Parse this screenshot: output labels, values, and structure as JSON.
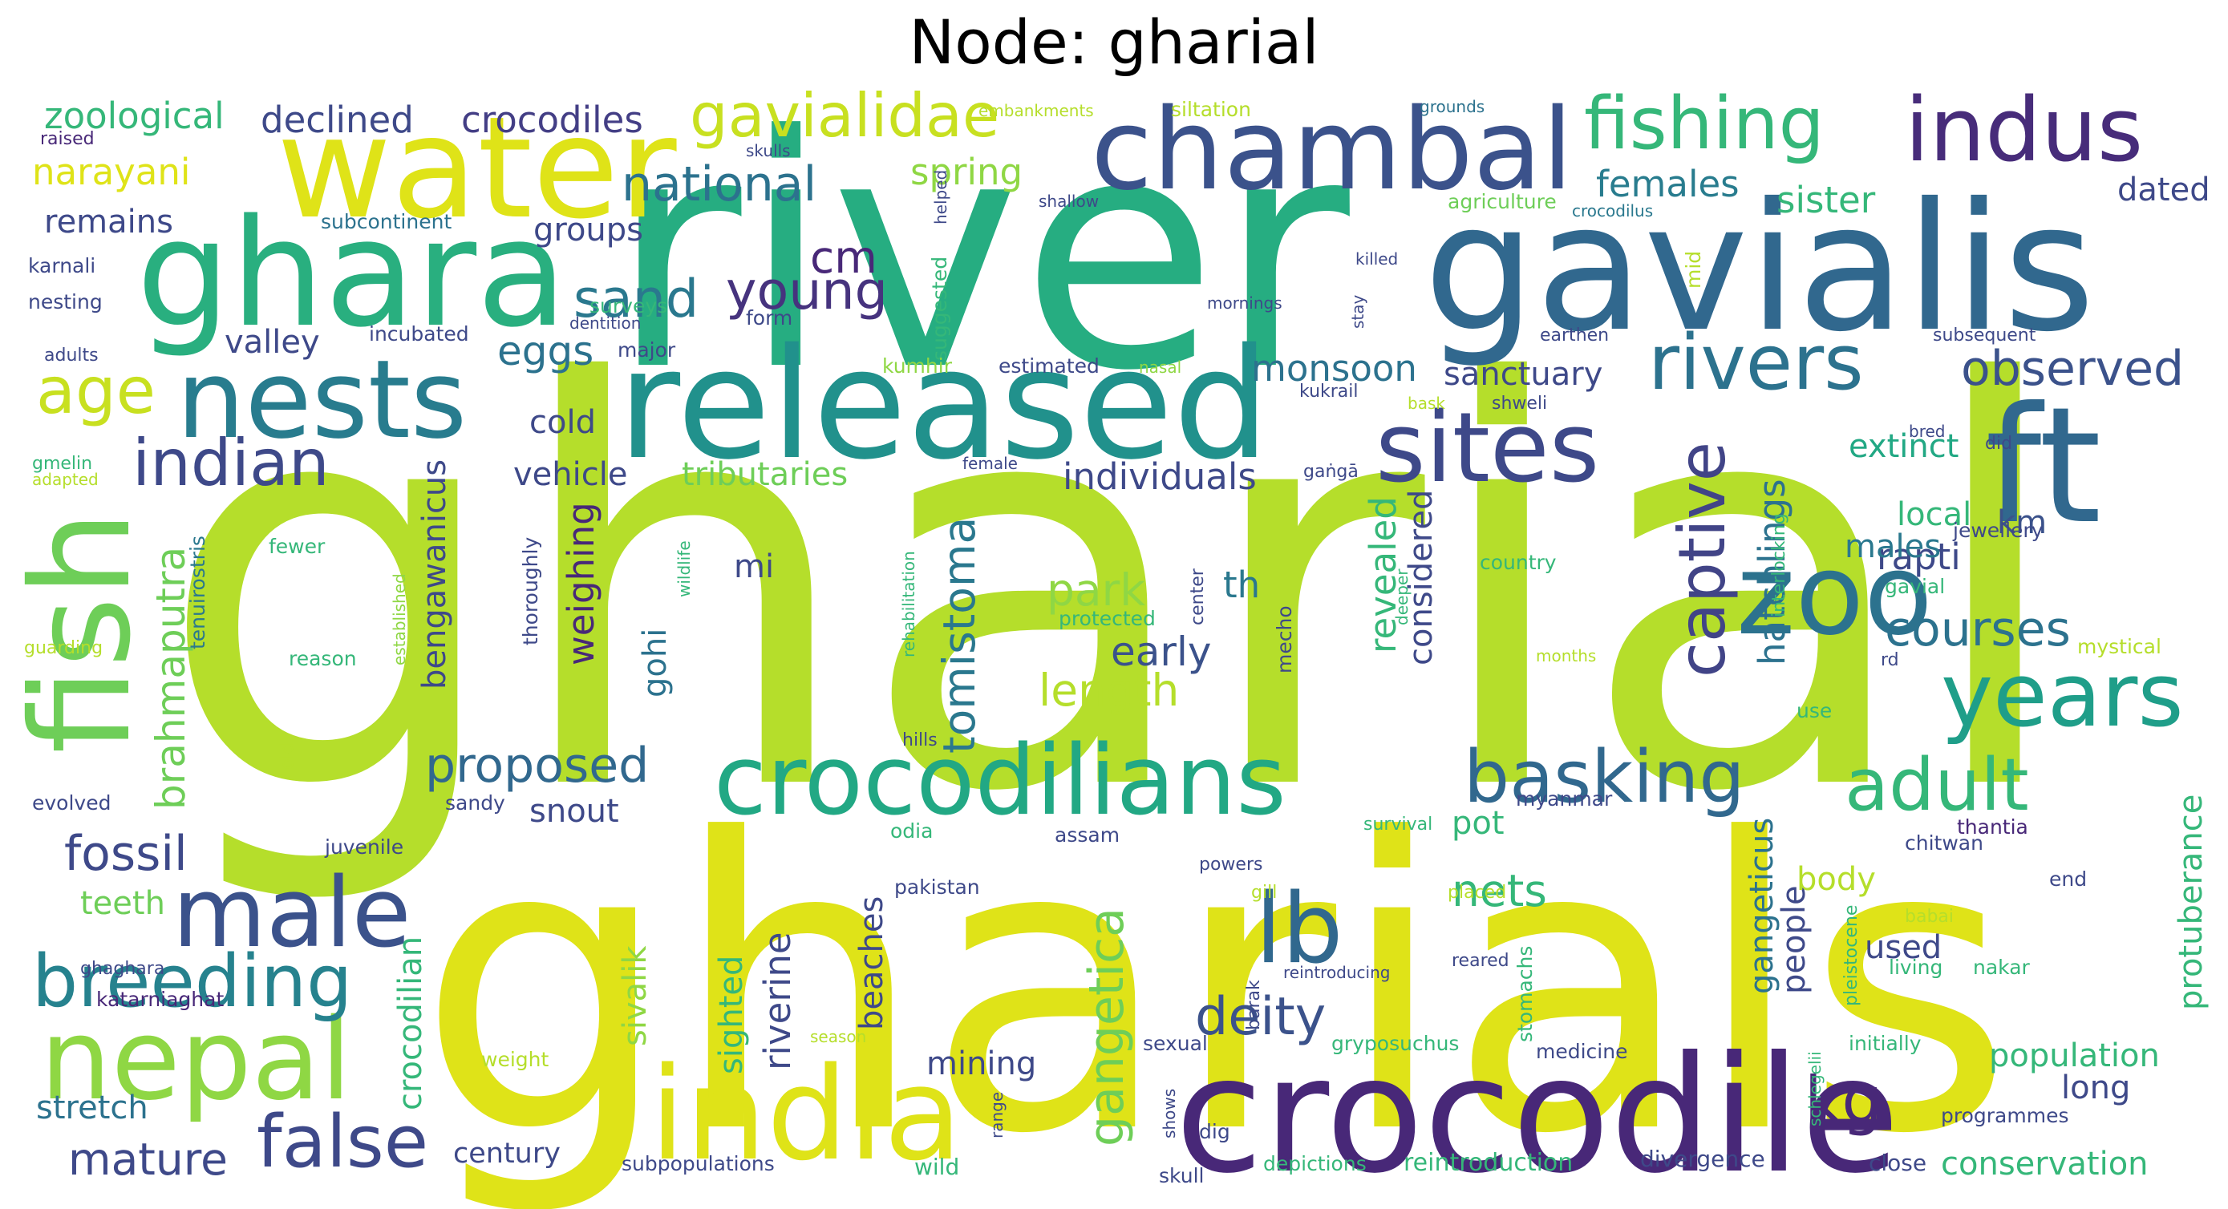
{
  "title": "Node: gharial",
  "palette": [
    "#440154",
    "#482878",
    "#3e4989",
    "#31688e",
    "#26828e",
    "#1f9e89",
    "#35b779",
    "#6ece58",
    "#b5de2b",
    "#fde725"
  ],
  "words": [
    {
      "text": "gharial",
      "color": "#b5de2b"
    },
    {
      "text": "river",
      "color": "#26ad81"
    },
    {
      "text": "gharials",
      "color": "#dfe318"
    },
    {
      "text": "gavialis",
      "color": "#31688e"
    },
    {
      "text": "released",
      "color": "#21918c"
    },
    {
      "text": "crocodile",
      "color": "#482878"
    },
    {
      "text": "ghara",
      "color": "#29af7f"
    },
    {
      "text": "water",
      "color": "#dfe318"
    },
    {
      "text": "chambal",
      "color": "#3b528b"
    },
    {
      "text": "fish",
      "color": "#6ece58"
    },
    {
      "text": "ft",
      "color": "#31688e"
    },
    {
      "text": "nests",
      "color": "#287c8e"
    },
    {
      "text": "zoo",
      "color": "#2c728e"
    },
    {
      "text": "crocodilians",
      "color": "#22a884"
    },
    {
      "text": "india",
      "color": "#dfe318"
    },
    {
      "text": "nepal",
      "color": "#8fd744"
    },
    {
      "text": "sites",
      "color": "#3e4989"
    },
    {
      "text": "years",
      "color": "#1f9e89"
    },
    {
      "text": "male",
      "color": "#3b528b"
    },
    {
      "text": "indus",
      "color": "#472c7a"
    },
    {
      "text": "fishing",
      "color": "#35b779"
    },
    {
      "text": "rivers",
      "color": "#2c728e"
    },
    {
      "text": "lb",
      "color": "#31688e"
    },
    {
      "text": "false",
      "color": "#3e4989"
    },
    {
      "text": "breeding",
      "color": "#26828e"
    },
    {
      "text": "basking",
      "color": "#31688e"
    },
    {
      "text": "captive",
      "color": "#414487"
    },
    {
      "text": "adult",
      "color": "#35b779"
    },
    {
      "text": "indian",
      "color": "#3e4989"
    },
    {
      "text": "age",
      "color": "#c8e020"
    },
    {
      "text": "kg",
      "color": "#482878"
    },
    {
      "text": "gavialidae",
      "color": "#c8e020"
    },
    {
      "text": "young",
      "color": "#46337e"
    },
    {
      "text": "sand",
      "color": "#2a788e"
    },
    {
      "text": "proposed",
      "color": "#31688e"
    },
    {
      "text": "fossil",
      "color": "#3e4989"
    },
    {
      "text": "mature",
      "color": "#3e4989"
    },
    {
      "text": "deity",
      "color": "#3b528b"
    },
    {
      "text": "observed",
      "color": "#3b528b"
    },
    {
      "text": "national",
      "color": "#2c728e"
    },
    {
      "text": "courses",
      "color": "#2c728e"
    },
    {
      "text": "brahmaputra",
      "color": "#6ece58"
    },
    {
      "text": "tomistoma",
      "color": "#2a788e"
    },
    {
      "text": "gangetica",
      "color": "#6ece58"
    },
    {
      "text": "cm",
      "color": "#482878"
    },
    {
      "text": "park",
      "color": "#8fd744"
    },
    {
      "text": "length",
      "color": "#b5de2b"
    },
    {
      "text": "early",
      "color": "#3b528b"
    },
    {
      "text": "nets",
      "color": "#35b779"
    },
    {
      "text": "eggs",
      "color": "#2c728e"
    },
    {
      "text": "zoological",
      "color": "#35b779"
    },
    {
      "text": "declined",
      "color": "#3e4989"
    },
    {
      "text": "crocodiles",
      "color": "#433e85"
    },
    {
      "text": "narayani",
      "color": "#dfe318"
    },
    {
      "text": "spring",
      "color": "#8fd744"
    },
    {
      "text": "females",
      "color": "#287c8e"
    },
    {
      "text": "sister",
      "color": "#35b779"
    },
    {
      "text": "dated",
      "color": "#3e4989"
    },
    {
      "text": "remains",
      "color": "#3e4989"
    },
    {
      "text": "groups",
      "color": "#3e4989"
    },
    {
      "text": "valley",
      "color": "#3e4989"
    },
    {
      "text": "monsoon",
      "color": "#2c728e"
    },
    {
      "text": "sanctuary",
      "color": "#3e4989"
    },
    {
      "text": "extinct",
      "color": "#22a884"
    },
    {
      "text": "local",
      "color": "#35b779"
    },
    {
      "text": "rapti",
      "color": "#3e4989"
    },
    {
      "text": "males",
      "color": "#2a788e"
    },
    {
      "text": "km",
      "color": "#3b528b"
    },
    {
      "text": "vehicle",
      "color": "#3e4989"
    },
    {
      "text": "tributaries",
      "color": "#6ece58"
    },
    {
      "text": "individuals",
      "color": "#3e4989"
    },
    {
      "text": "cold",
      "color": "#3e4989"
    },
    {
      "text": "hatchlings",
      "color": "#2c728e"
    },
    {
      "text": "considered",
      "color": "#3e4989"
    },
    {
      "text": "revealed",
      "color": "#35b779"
    },
    {
      "text": "weighing",
      "color": "#482878"
    },
    {
      "text": "bengawanicus",
      "color": "#3e4989"
    },
    {
      "text": "th",
      "color": "#2a788e"
    },
    {
      "text": "mi",
      "color": "#3e4989"
    },
    {
      "text": "snout",
      "color": "#3e4989"
    },
    {
      "text": "teeth",
      "color": "#6ece58"
    },
    {
      "text": "crocodilian",
      "color": "#35b779"
    },
    {
      "text": "sivalik",
      "color": "#8fd744"
    },
    {
      "text": "gohi",
      "color": "#2c728e"
    },
    {
      "text": "sighted",
      "color": "#35b779"
    },
    {
      "text": "riverine",
      "color": "#3e4989"
    },
    {
      "text": "beaches",
      "color": "#3e4989"
    },
    {
      "text": "mining",
      "color": "#3e4989"
    },
    {
      "text": "pot",
      "color": "#35b779"
    },
    {
      "text": "gangeticus",
      "color": "#2c728e"
    },
    {
      "text": "people",
      "color": "#3e4989"
    },
    {
      "text": "body",
      "color": "#b5de2b"
    },
    {
      "text": "used",
      "color": "#3e4989"
    },
    {
      "text": "protuberance",
      "color": "#35b779"
    },
    {
      "text": "population",
      "color": "#35b779"
    },
    {
      "text": "long",
      "color": "#3e4989"
    },
    {
      "text": "conservation",
      "color": "#35b779"
    },
    {
      "text": "stretch",
      "color": "#2c728e"
    },
    {
      "text": "century",
      "color": "#3e4989"
    },
    {
      "text": "raised",
      "color": "#482878"
    },
    {
      "text": "skulls",
      "color": "#3e4989"
    },
    {
      "text": "embankments",
      "color": "#b5de2b"
    },
    {
      "text": "siltation",
      "color": "#b5de2b"
    },
    {
      "text": "grounds",
      "color": "#2c728e"
    },
    {
      "text": "subcontinent",
      "color": "#2c728e"
    },
    {
      "text": "helped",
      "color": "#3e4989"
    },
    {
      "text": "shallow",
      "color": "#3e4989"
    },
    {
      "text": "agriculture",
      "color": "#6ece58"
    },
    {
      "text": "crocodilus",
      "color": "#2a788e"
    },
    {
      "text": "karnali",
      "color": "#3e4989"
    },
    {
      "text": "nesting",
      "color": "#3e4989"
    },
    {
      "text": "surveys",
      "color": "#35b779"
    },
    {
      "text": "suggested",
      "color": "#35b779"
    },
    {
      "text": "killed",
      "color": "#3e4989"
    },
    {
      "text": "mid",
      "color": "#b5de2b"
    },
    {
      "text": "incubated",
      "color": "#3e4989"
    },
    {
      "text": "dentition",
      "color": "#3e4989"
    },
    {
      "text": "form",
      "color": "#3e4989"
    },
    {
      "text": "stay",
      "color": "#3e4989"
    },
    {
      "text": "mornings",
      "color": "#3e4989"
    },
    {
      "text": "earthen",
      "color": "#3e4989"
    },
    {
      "text": "subsequent",
      "color": "#3e4989"
    },
    {
      "text": "adults",
      "color": "#3e4989"
    },
    {
      "text": "major",
      "color": "#3e4989"
    },
    {
      "text": "kumhir",
      "color": "#8fd744"
    },
    {
      "text": "estimated",
      "color": "#3e4989"
    },
    {
      "text": "nasal",
      "color": "#8fd744"
    },
    {
      "text": "kukrail",
      "color": "#3e4989"
    },
    {
      "text": "bask",
      "color": "#b5de2b"
    },
    {
      "text": "shweli",
      "color": "#3e4989"
    },
    {
      "text": "bred",
      "color": "#3e4989"
    },
    {
      "text": "did",
      "color": "#3e4989"
    },
    {
      "text": "gmelin",
      "color": "#35b779"
    },
    {
      "text": "adapted",
      "color": "#b5de2b"
    },
    {
      "text": "female",
      "color": "#3e4989"
    },
    {
      "text": "gaṅgā",
      "color": "#3e4989"
    },
    {
      "text": "wildlife",
      "color": "#35b779"
    },
    {
      "text": "rehabilitation",
      "color": "#35b779"
    },
    {
      "text": "center",
      "color": "#3e4989"
    },
    {
      "text": "country",
      "color": "#35b779"
    },
    {
      "text": "jewellery",
      "color": "#3e4989"
    },
    {
      "text": "fewer",
      "color": "#35b779"
    },
    {
      "text": "tenuirostris",
      "color": "#2a788e"
    },
    {
      "text": "established",
      "color": "#8fd744"
    },
    {
      "text": "thoroughly",
      "color": "#3e4989"
    },
    {
      "text": "protected",
      "color": "#35b779"
    },
    {
      "text": "mecho",
      "color": "#3e4989"
    },
    {
      "text": "deeper",
      "color": "#35b779"
    },
    {
      "text": "interlocking",
      "color": "#35b779"
    },
    {
      "text": "gavial",
      "color": "#35b779"
    },
    {
      "text": "rd",
      "color": "#3e4989"
    },
    {
      "text": "mystical",
      "color": "#b5de2b"
    },
    {
      "text": "guarding",
      "color": "#b5de2b"
    },
    {
      "text": "reason",
      "color": "#35b779"
    },
    {
      "text": "months",
      "color": "#b5de2b"
    },
    {
      "text": "use",
      "color": "#35b779"
    },
    {
      "text": "old",
      "color": "#b5de2b"
    },
    {
      "text": "hills",
      "color": "#3e4989"
    },
    {
      "text": "evolved",
      "color": "#3e4989"
    },
    {
      "text": "sandy",
      "color": "#3e4989"
    },
    {
      "text": "myanmar",
      "color": "#3e4989"
    },
    {
      "text": "survival",
      "color": "#35b779"
    },
    {
      "text": "thantia",
      "color": "#482878"
    },
    {
      "text": "juvenile",
      "color": "#3e4989"
    },
    {
      "text": "odia",
      "color": "#35b779"
    },
    {
      "text": "assam",
      "color": "#3e4989"
    },
    {
      "text": "chitwan",
      "color": "#3e4989"
    },
    {
      "text": "powers",
      "color": "#3e4989"
    },
    {
      "text": "end",
      "color": "#3e4989"
    },
    {
      "text": "pakistan",
      "color": "#3e4989"
    },
    {
      "text": "gill",
      "color": "#b5de2b"
    },
    {
      "text": "placed",
      "color": "#b5de2b"
    },
    {
      "text": "pleistocene",
      "color": "#35b779"
    },
    {
      "text": "ghaghara",
      "color": "#3e4989"
    },
    {
      "text": "babai",
      "color": "#b5de2b"
    },
    {
      "text": "reared",
      "color": "#3e4989"
    },
    {
      "text": "stomachs",
      "color": "#35b779"
    },
    {
      "text": "barak",
      "color": "#3e4989"
    },
    {
      "text": "reintroducing",
      "color": "#3e4989"
    },
    {
      "text": "living",
      "color": "#35b779"
    },
    {
      "text": "nakar",
      "color": "#35b779"
    },
    {
      "text": "katarniaghat",
      "color": "#482878"
    },
    {
      "text": "season",
      "color": "#b5de2b"
    },
    {
      "text": "weight",
      "color": "#b5de2b"
    },
    {
      "text": "sexual",
      "color": "#3e4989"
    },
    {
      "text": "gryposuchus",
      "color": "#35b779"
    },
    {
      "text": "medicine",
      "color": "#3e4989"
    },
    {
      "text": "initially",
      "color": "#35b779"
    },
    {
      "text": "schlegelii",
      "color": "#35b779"
    },
    {
      "text": "range",
      "color": "#3e4989"
    },
    {
      "text": "shows",
      "color": "#3e4989"
    },
    {
      "text": "dig",
      "color": "#3e4989"
    },
    {
      "text": "programmes",
      "color": "#3e4989"
    },
    {
      "text": "subpopulations",
      "color": "#3e4989"
    },
    {
      "text": "wild",
      "color": "#35b779"
    },
    {
      "text": "skull",
      "color": "#3e4989"
    },
    {
      "text": "depictions",
      "color": "#35b779"
    },
    {
      "text": "reintroduction",
      "color": "#35b779"
    },
    {
      "text": "divergence",
      "color": "#3e4989"
    },
    {
      "text": "close",
      "color": "#3e4989"
    }
  ]
}
